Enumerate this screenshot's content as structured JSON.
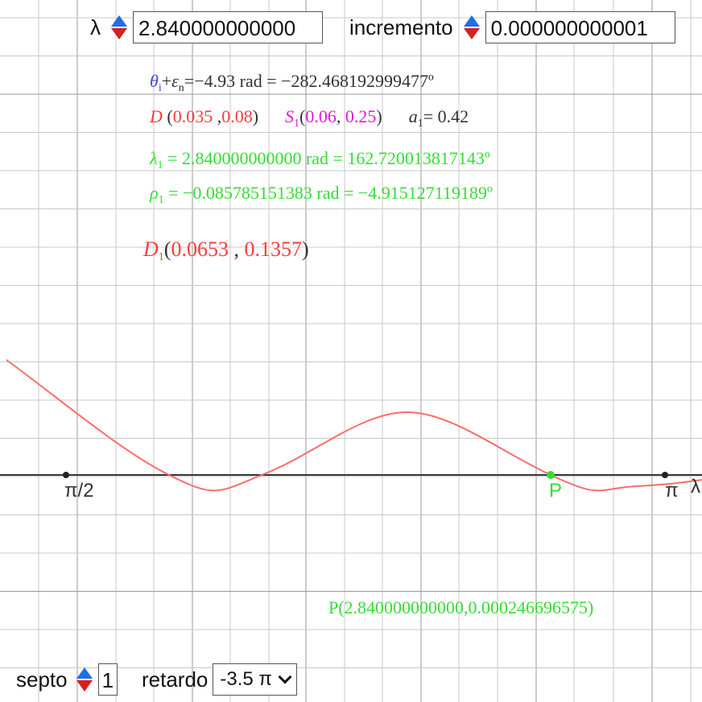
{
  "controls": {
    "lambda_label": "λ",
    "lambda_value": "2.840000000000",
    "increment_label": "incremento",
    "increment_value": "0.000000000001",
    "septo_label": "septo",
    "septo_value": "1",
    "retardo_label": "retardo",
    "retardo_value": "-3.5 π"
  },
  "info": {
    "theta_sym": "θ",
    "theta_sub": "i",
    "eps_sym": "ε",
    "eps_sub": "n",
    "theta_line_rest": "=−4.93 rad = −282.468192999477º",
    "D_label": "D",
    "D_x": "0.035",
    "D_y": "0.08",
    "S_label": "S",
    "S_sub": "1",
    "S_x": "0.06",
    "S_y": "0.25",
    "a_label": "a",
    "a_sub": "1",
    "a_value": "= 0.42",
    "lambda1_sym": "λ",
    "lambda1_sub": "1",
    "lambda1_line": " = 2.840000000000 rad = 162.720013817143º",
    "rho1_sym": "ρ",
    "rho1_sub": "1",
    "rho1_line": " = −0.085785151383 rad = −4.915127119189º",
    "D1_label": "D",
    "D1_sub": "1",
    "D1_x": "0.0653",
    "D1_y": "0.1357",
    "P_coords": "P(2.840000000000,0.000246696575)"
  },
  "axis": {
    "tick_pi_half": "π/2",
    "tick_pi": "π",
    "axis_label": "λ",
    "point_label": "P"
  },
  "colors": {
    "curve": "#ff6b6b",
    "point": "#33dd33",
    "grid": "#c8c8c8",
    "axis": "#333333"
  },
  "chart_data": {
    "type": "line",
    "x_axis_ticks": [
      "π/2",
      "π"
    ],
    "point_P": {
      "x": 2.84,
      "y": 0.000246696575
    }
  }
}
